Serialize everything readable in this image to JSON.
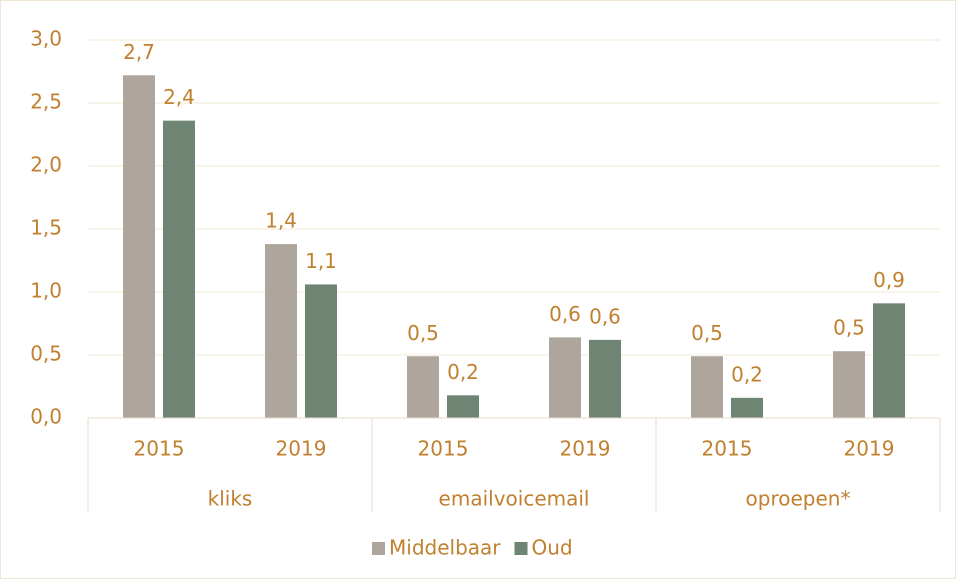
{
  "chart_data": {
    "type": "bar",
    "categories": [
      "2015",
      "2019",
      "2015",
      "2019",
      "2015",
      "2019"
    ],
    "groups": [
      "kliks",
      "emailvoicemail",
      "oproepen*"
    ],
    "series": [
      {
        "name": "Middelbaar",
        "color": "#aea59c",
        "values": [
          2.72,
          1.38,
          0.49,
          0.64,
          0.49,
          0.53
        ],
        "value_labels": [
          "2,7",
          "1,4",
          "0,5",
          "0,6",
          "0,5",
          "0,5"
        ]
      },
      {
        "name": "Oud",
        "color": "#6e8573",
        "values": [
          2.36,
          1.06,
          0.18,
          0.62,
          0.16,
          0.91
        ],
        "value_labels": [
          "2,4",
          "1,1",
          "0,2",
          "0,6",
          "0,2",
          "0,9"
        ]
      }
    ],
    "ylim": [
      0,
      3
    ],
    "yticks": [
      {
        "value": 0,
        "label": "0,0"
      },
      {
        "value": 0.5,
        "label": "0,5"
      },
      {
        "value": 1,
        "label": "1,0"
      },
      {
        "value": 1.5,
        "label": "1,5"
      },
      {
        "value": 2,
        "label": "2,0"
      },
      {
        "value": 2.5,
        "label": "2,5"
      },
      {
        "value": 3,
        "label": "3,0"
      }
    ],
    "grid": true,
    "legend": "bottom"
  }
}
